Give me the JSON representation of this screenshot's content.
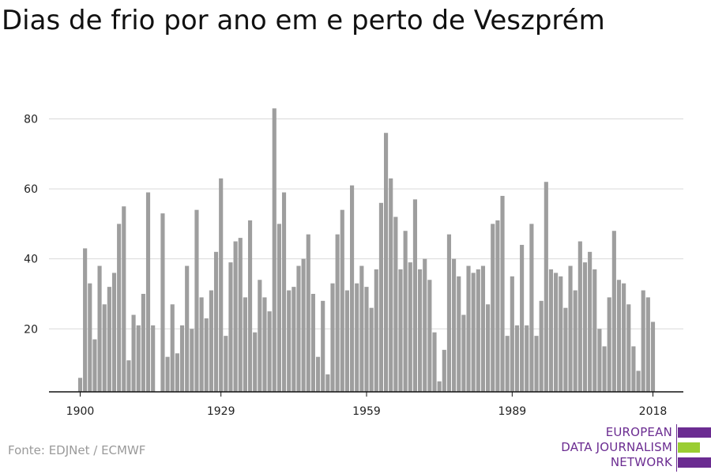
{
  "header": {
    "title": "Dias de frio por ano em e perto de Veszprém"
  },
  "footer": {
    "source": "Fonte: EDJNet / ECMWF"
  },
  "logo": {
    "lines": [
      "EUROPEAN",
      "DATA JOURNALISM",
      "NETWORK"
    ],
    "colors": {
      "purple": "#6b2c91",
      "green": "#9acd32"
    }
  },
  "colors": {
    "bar": "#9e9e9e",
    "grid": "#d9d9d9",
    "axis": "#111111"
  },
  "chart_data": {
    "type": "bar",
    "title": "Dias de frio por ano em e perto de Veszprém",
    "xlabel": "",
    "ylabel": "",
    "x_ticks": [
      1900,
      1929,
      1959,
      1989,
      2018
    ],
    "y_ticks": [
      20,
      40,
      60,
      80
    ],
    "ylim": [
      2,
      86
    ],
    "grid": true,
    "years": [
      1900,
      1901,
      1902,
      1903,
      1904,
      1905,
      1906,
      1907,
      1908,
      1909,
      1910,
      1911,
      1912,
      1913,
      1914,
      1915,
      1916,
      1917,
      1918,
      1919,
      1920,
      1921,
      1922,
      1923,
      1924,
      1925,
      1926,
      1927,
      1928,
      1929,
      1930,
      1931,
      1932,
      1933,
      1934,
      1935,
      1936,
      1937,
      1938,
      1939,
      1940,
      1941,
      1942,
      1943,
      1944,
      1945,
      1946,
      1947,
      1948,
      1949,
      1950,
      1951,
      1952,
      1953,
      1954,
      1955,
      1956,
      1957,
      1958,
      1959,
      1960,
      1961,
      1962,
      1963,
      1964,
      1965,
      1966,
      1967,
      1968,
      1969,
      1970,
      1971,
      1972,
      1973,
      1974,
      1975,
      1976,
      1977,
      1978,
      1979,
      1980,
      1981,
      1982,
      1983,
      1984,
      1985,
      1986,
      1987,
      1988,
      1989,
      1990,
      1991,
      1992,
      1993,
      1994,
      1995,
      1996,
      1997,
      1998,
      1999,
      2000,
      2001,
      2002,
      2003,
      2004,
      2005,
      2006,
      2007,
      2008,
      2009,
      2010,
      2011,
      2012,
      2013,
      2014,
      2015,
      2016,
      2017,
      2018
    ],
    "values": [
      6,
      43,
      33,
      17,
      38,
      27,
      32,
      36,
      50,
      55,
      11,
      24,
      21,
      30,
      59,
      21,
      null,
      53,
      12,
      27,
      13,
      21,
      38,
      20,
      54,
      29,
      23,
      31,
      42,
      63,
      18,
      39,
      45,
      46,
      29,
      51,
      19,
      34,
      29,
      25,
      83,
      50,
      59,
      31,
      32,
      38,
      40,
      47,
      30,
      12,
      28,
      7,
      33,
      47,
      54,
      31,
      61,
      33,
      38,
      32,
      26,
      37,
      56,
      76,
      63,
      52,
      37,
      48,
      39,
      57,
      37,
      40,
      34,
      19,
      5,
      14,
      47,
      40,
      35,
      24,
      38,
      36,
      37,
      38,
      27,
      50,
      51,
      58,
      18,
      35,
      21,
      44,
      21,
      50,
      18,
      28,
      62,
      37,
      36,
      35,
      26,
      38,
      31,
      45,
      39,
      42,
      37,
      20,
      15,
      29,
      48,
      34,
      33,
      27,
      15,
      8,
      31,
      29,
      22
    ]
  }
}
